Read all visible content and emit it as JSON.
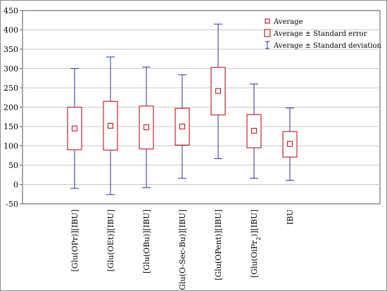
{
  "chart_data": {
    "type": "box",
    "title": "",
    "xlabel": "",
    "ylabel": "",
    "ylim": [
      -50,
      450
    ],
    "y_ticks": [
      -50,
      0,
      50,
      100,
      150,
      200,
      250,
      300,
      350,
      400,
      450
    ],
    "grid": true,
    "legend_position": "top-right",
    "legend": [
      {
        "label": "Average",
        "marker": "square"
      },
      {
        "label": "Average ± Standard error",
        "marker": "box"
      },
      {
        "label": "Average ± Standard deviation",
        "marker": "whisker"
      }
    ],
    "colors": {
      "box": "#c0282d",
      "whisker": "#2c32a0",
      "grid": "#c8c8c8"
    },
    "categories": [
      {
        "label": "[Glu(OPr)][IBU]",
        "parts": [
          {
            "t": "[Glu(OPr)][IBU]"
          }
        ]
      },
      {
        "label": "[Glu(OEt)][IBU]",
        "parts": [
          {
            "t": "[Glu(OEt)][IBU]"
          }
        ]
      },
      {
        "label": "[Glu(OBu)][IBU]",
        "parts": [
          {
            "t": "[Glu(OBu)][IBU]"
          }
        ]
      },
      {
        "label": "[Glu(O-Sec-Bu)][IBU]",
        "parts": [
          {
            "t": "[Glu(O-Sec-Bu)][IBU]"
          }
        ]
      },
      {
        "label": "[Glu(OPent)][IBU]",
        "parts": [
          {
            "t": "[Glu(OPent)][IBU]"
          }
        ]
      },
      {
        "label": "[Glu(OiPr)2][IBU]",
        "parts": [
          {
            "t": "[Glu(OiPr"
          },
          {
            "t": "2",
            "sub": true
          },
          {
            "t": ")][IBU]"
          }
        ]
      },
      {
        "label": "IBU",
        "parts": [
          {
            "t": "IBU"
          }
        ]
      }
    ],
    "series": [
      {
        "mean": 145,
        "se_low": 90,
        "se_high": 200,
        "sd_low": -10,
        "sd_high": 300
      },
      {
        "mean": 152,
        "se_low": 89,
        "se_high": 215,
        "sd_low": -26,
        "sd_high": 330
      },
      {
        "mean": 148,
        "se_low": 92,
        "se_high": 203,
        "sd_low": -8,
        "sd_high": 304
      },
      {
        "mean": 150,
        "se_low": 102,
        "se_high": 197,
        "sd_low": 16,
        "sd_high": 284
      },
      {
        "mean": 242,
        "se_low": 180,
        "se_high": 303,
        "sd_low": 67,
        "sd_high": 415
      },
      {
        "mean": 139,
        "se_low": 95,
        "se_high": 181,
        "sd_low": 16,
        "sd_high": 260
      },
      {
        "mean": 105,
        "se_low": 71,
        "se_high": 137,
        "sd_low": 11,
        "sd_high": 198
      }
    ]
  }
}
